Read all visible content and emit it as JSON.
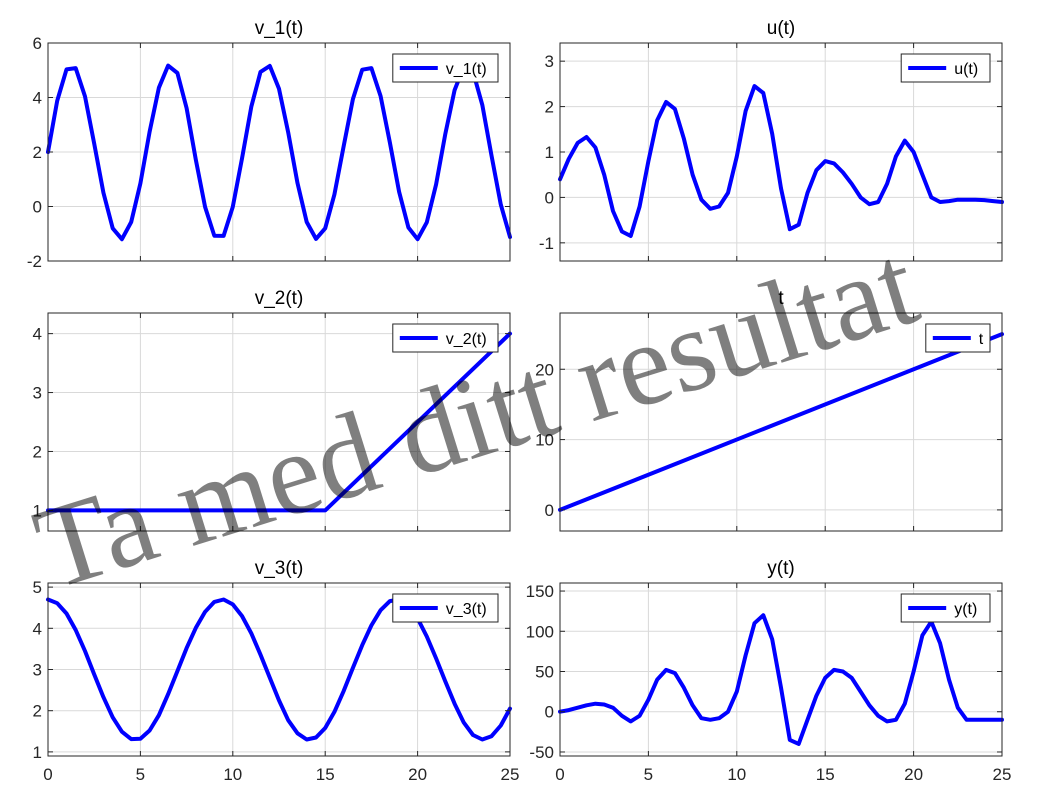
{
  "figure": {
    "series_color": "#0000ff",
    "watermark": "Ta med ditt resultat"
  },
  "chart_data": [
    {
      "type": "line",
      "title": "v_1(t)",
      "xlim": [
        0,
        25
      ],
      "ylim": [
        -2,
        6
      ],
      "xticks": [
        0,
        5,
        10,
        15,
        20,
        25
      ],
      "yticks": [
        -2,
        0,
        2,
        4,
        6
      ],
      "show_xtick_labels": false,
      "grid": true,
      "legend": "top-right",
      "series": [
        {
          "name": "v_1(t)",
          "x": [
            0,
            0.5,
            1,
            1.5,
            2,
            2.5,
            3,
            3.5,
            4,
            4.5,
            5,
            5.5,
            6,
            6.5,
            7,
            7.5,
            8,
            8.5,
            9,
            9.5,
            10,
            10.5,
            11,
            11.5,
            12,
            12.5,
            13,
            13.5,
            14,
            14.5,
            15,
            15.5,
            16,
            16.5,
            17,
            17.5,
            18,
            18.5,
            19,
            19.5,
            20,
            20.5,
            21,
            21.5,
            22,
            22.5,
            23,
            23.5,
            24,
            24.5,
            25
          ],
          "y": [
            2.0,
            3.88,
            5.03,
            5.08,
            4.04,
            2.31,
            0.51,
            -0.8,
            -1.2,
            -0.57,
            0.85,
            2.74,
            4.36,
            5.17,
            4.9,
            3.61,
            1.72,
            -0.02,
            -1.07,
            -1.08,
            -0.01,
            1.76,
            3.66,
            4.94,
            5.16,
            4.32,
            2.72,
            0.86,
            -0.57,
            -1.19,
            -0.8,
            0.44,
            2.22,
            3.94,
            5.02,
            5.08,
            4.05,
            2.34,
            0.54,
            -0.77,
            -1.2,
            -0.58,
            0.81,
            2.66,
            4.27,
            5.13,
            4.95,
            3.73,
            1.87,
            0.07,
            -1.12
          ]
        }
      ]
    },
    {
      "type": "line",
      "title": "u(t)",
      "xlim": [
        0,
        25
      ],
      "ylim": [
        -1.4,
        3.4
      ],
      "xticks": [
        0,
        5,
        10,
        15,
        20,
        25
      ],
      "yticks": [
        -1,
        0,
        1,
        2,
        3
      ],
      "show_xtick_labels": false,
      "grid": true,
      "legend": "top-right",
      "series": [
        {
          "name": "u(t)",
          "x": [
            0,
            0.5,
            1,
            1.5,
            2,
            2.5,
            3,
            3.5,
            4,
            4.5,
            5,
            5.5,
            6,
            6.5,
            7,
            7.5,
            8,
            8.5,
            9,
            9.5,
            10,
            10.5,
            11,
            11.5,
            12,
            12.5,
            13,
            13.5,
            14,
            14.5,
            15,
            15.5,
            16,
            16.5,
            17,
            17.5,
            18,
            18.5,
            19,
            19.5,
            20,
            20.5,
            21,
            21.5,
            22,
            22.5,
            23,
            23.5,
            24,
            24.5,
            25
          ],
          "y": [
            0.4,
            0.85,
            1.2,
            1.33,
            1.1,
            0.5,
            -0.3,
            -0.75,
            -0.85,
            -0.2,
            0.8,
            1.7,
            2.1,
            1.95,
            1.3,
            0.5,
            -0.05,
            -0.25,
            -0.2,
            0.1,
            0.9,
            1.9,
            2.45,
            2.3,
            1.4,
            0.2,
            -0.7,
            -0.6,
            0.1,
            0.6,
            0.8,
            0.75,
            0.55,
            0.3,
            0.0,
            -0.15,
            -0.1,
            0.3,
            0.9,
            1.25,
            1.0,
            0.5,
            0.0,
            -0.1,
            -0.08,
            -0.05,
            -0.05,
            -0.05,
            -0.06,
            -0.08,
            -0.1
          ]
        }
      ]
    },
    {
      "type": "line",
      "title": "v_2(t)",
      "xlim": [
        0,
        25
      ],
      "ylim": [
        0.65,
        4.35
      ],
      "xticks": [
        0,
        5,
        10,
        15,
        20,
        25
      ],
      "yticks": [
        1,
        2,
        3,
        4
      ],
      "show_xtick_labels": false,
      "grid": true,
      "legend": "top-right",
      "series": [
        {
          "name": "v_2(t)",
          "x": [
            0,
            15,
            25
          ],
          "y": [
            1,
            1,
            4
          ]
        }
      ]
    },
    {
      "type": "line",
      "title": "t",
      "xlim": [
        0,
        25
      ],
      "ylim": [
        -3,
        28
      ],
      "xticks": [
        0,
        5,
        10,
        15,
        20,
        25
      ],
      "yticks": [
        0,
        10,
        20
      ],
      "show_xtick_labels": false,
      "grid": true,
      "legend": "top-right",
      "series": [
        {
          "name": "t",
          "x": [
            0,
            25
          ],
          "y": [
            0,
            25
          ]
        }
      ]
    },
    {
      "type": "line",
      "title": "v_3(t)",
      "xlim": [
        0,
        25
      ],
      "ylim": [
        0.9,
        5.1
      ],
      "xticks": [
        0,
        5,
        10,
        15,
        20,
        25
      ],
      "yticks": [
        1,
        2,
        3,
        4,
        5
      ],
      "show_xtick_labels": true,
      "grid": true,
      "legend": "top-right",
      "series": [
        {
          "name": "v_3(t)",
          "x": [
            0,
            0.5,
            1,
            1.5,
            2,
            2.5,
            3,
            3.5,
            4,
            4.5,
            5,
            5.5,
            6,
            6.5,
            7,
            7.5,
            8,
            8.5,
            9,
            9.5,
            10,
            10.5,
            11,
            11.5,
            12,
            12.5,
            13,
            13.5,
            14,
            14.5,
            15,
            15.5,
            16,
            16.5,
            17,
            17.5,
            18,
            18.5,
            19,
            19.5,
            20,
            20.5,
            21,
            21.5,
            22,
            22.5,
            23,
            23.5,
            24,
            24.5,
            25
          ],
          "y": [
            4.7,
            4.61,
            4.36,
            3.96,
            3.45,
            2.88,
            2.33,
            1.84,
            1.49,
            1.31,
            1.32,
            1.52,
            1.89,
            2.4,
            2.96,
            3.52,
            4.01,
            4.4,
            4.64,
            4.7,
            4.58,
            4.3,
            3.88,
            3.36,
            2.8,
            2.25,
            1.77,
            1.45,
            1.3,
            1.35,
            1.58,
            1.97,
            2.48,
            3.04,
            3.59,
            4.07,
            4.44,
            4.66,
            4.7,
            4.55,
            4.24,
            3.8,
            3.27,
            2.71,
            2.17,
            1.71,
            1.41,
            1.3,
            1.38,
            1.64,
            2.05
          ]
        }
      ]
    },
    {
      "type": "line",
      "title": "y(t)",
      "xlim": [
        0,
        25
      ],
      "ylim": [
        -55,
        160
      ],
      "xticks": [
        0,
        5,
        10,
        15,
        20,
        25
      ],
      "yticks": [
        -50,
        0,
        50,
        100,
        150
      ],
      "show_xtick_labels": true,
      "grid": true,
      "legend": "top-right",
      "series": [
        {
          "name": "y(t)",
          "x": [
            0,
            0.5,
            1,
            1.5,
            2,
            2.5,
            3,
            3.5,
            4,
            4.5,
            5,
            5.5,
            6,
            6.5,
            7,
            7.5,
            8,
            8.5,
            9,
            9.5,
            10,
            10.5,
            11,
            11.5,
            12,
            12.5,
            13,
            13.5,
            14,
            14.5,
            15,
            15.5,
            16,
            16.5,
            17,
            17.5,
            18,
            18.5,
            19,
            19.5,
            20,
            20.5,
            21,
            21.5,
            22,
            22.5,
            23,
            23.5,
            24,
            24.5,
            25
          ],
          "y": [
            0,
            2,
            5,
            8,
            10,
            9,
            5,
            -5,
            -12,
            -5,
            15,
            40,
            52,
            48,
            30,
            8,
            -8,
            -10,
            -8,
            0,
            25,
            70,
            110,
            120,
            90,
            30,
            -35,
            -40,
            -10,
            20,
            42,
            52,
            50,
            42,
            25,
            8,
            -5,
            -12,
            -10,
            10,
            50,
            95,
            112,
            85,
            40,
            5,
            -10,
            -10,
            -10,
            -10,
            -10
          ]
        }
      ]
    }
  ]
}
